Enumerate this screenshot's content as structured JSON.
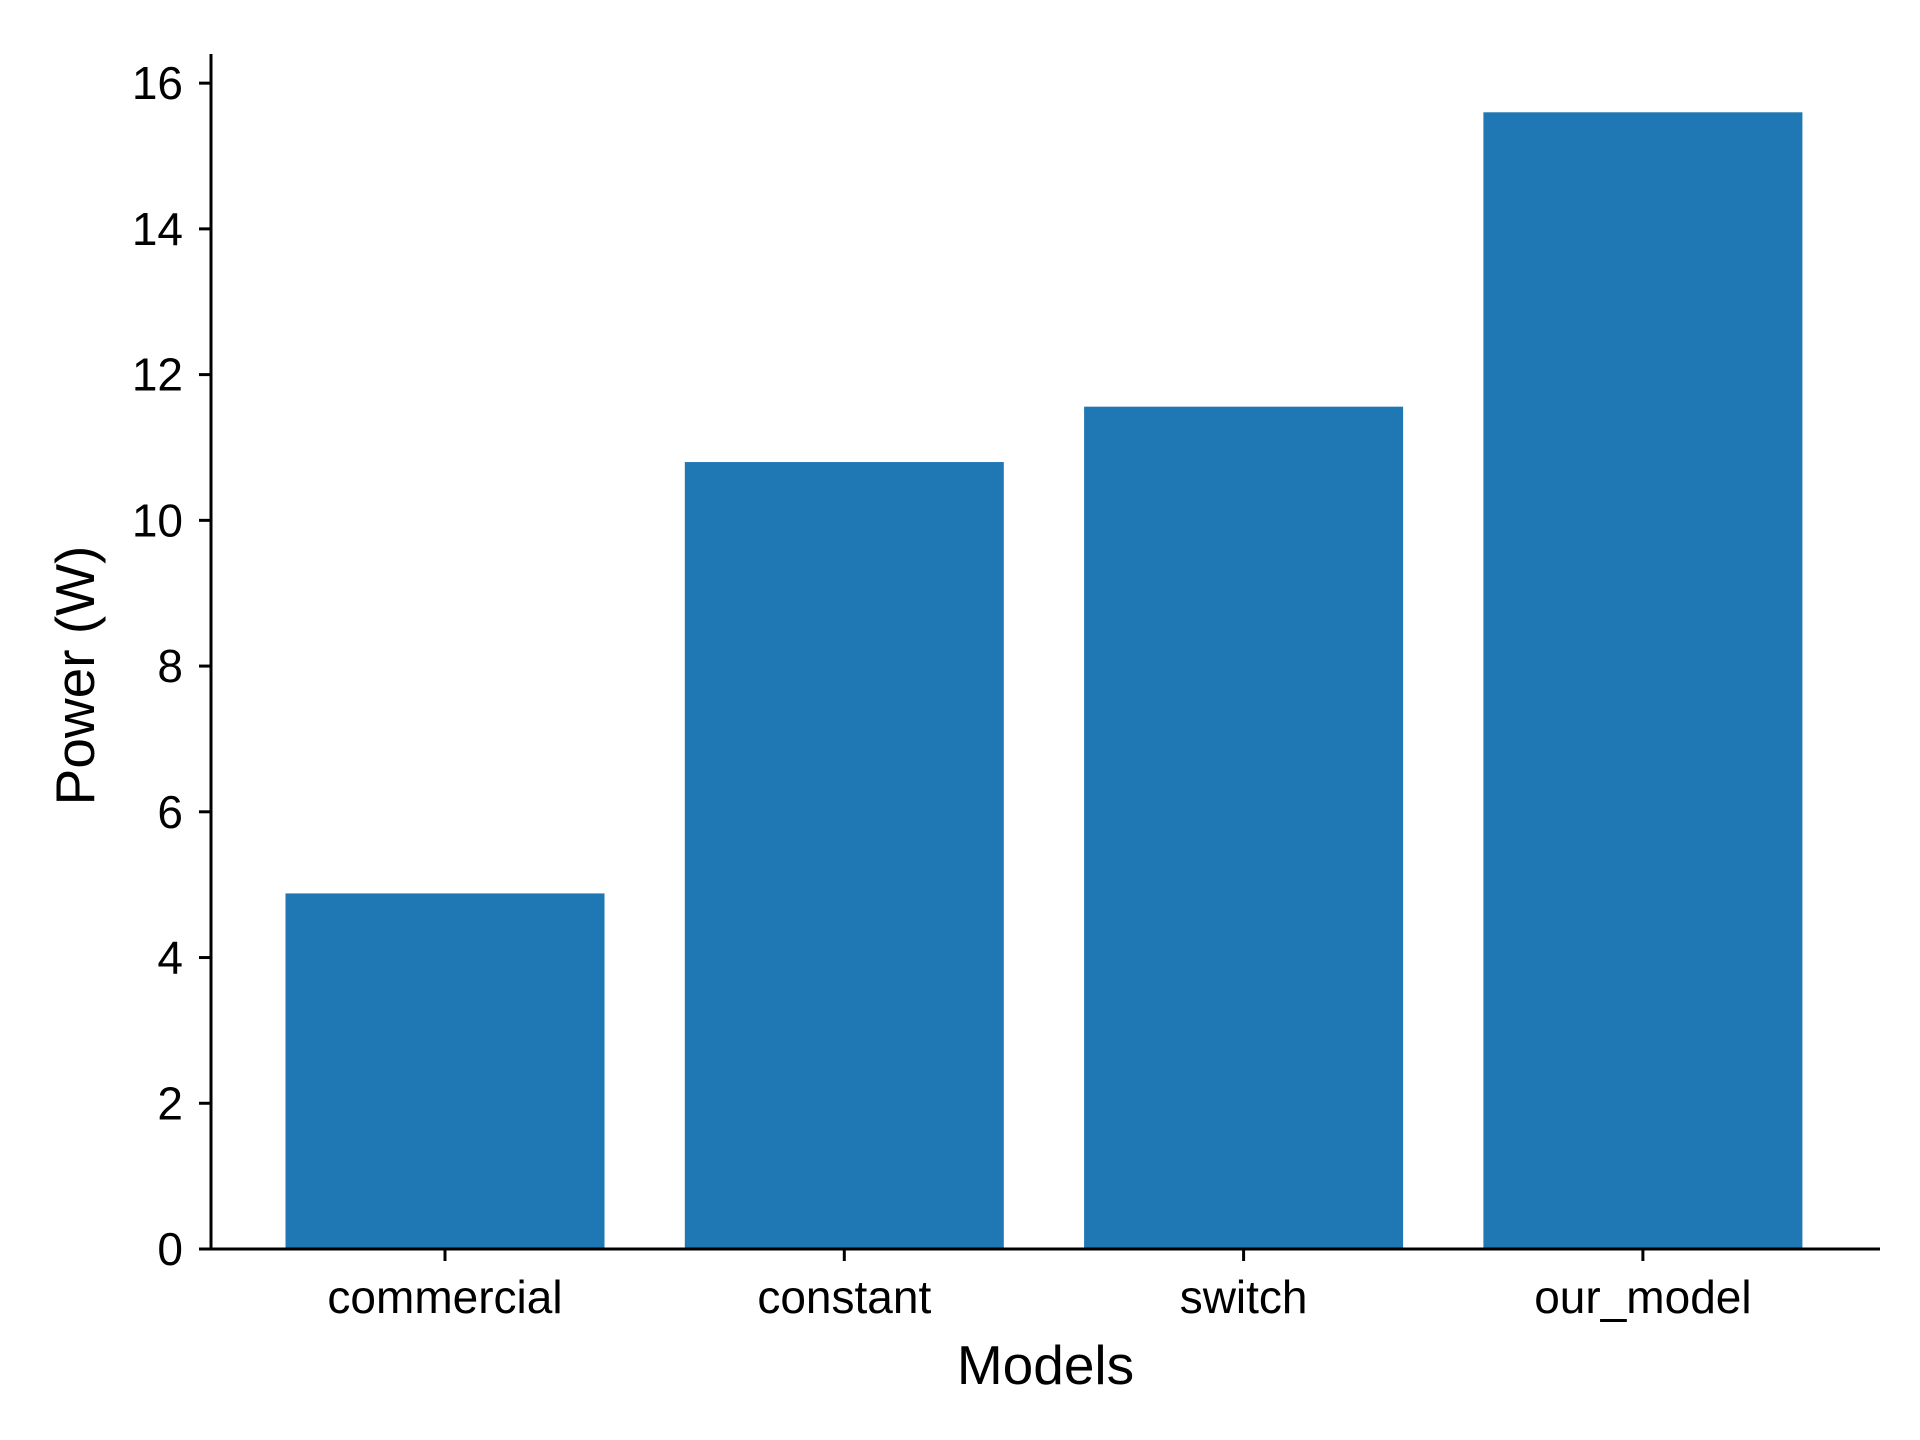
{
  "chart_data": {
    "type": "bar",
    "title": "",
    "categories": [
      "commercial",
      "constant",
      "switch",
      "our_model"
    ],
    "values": [
      4.88,
      10.8,
      11.56,
      15.6
    ],
    "xlabel": "Models",
    "ylabel": "Power (W)",
    "ylim": [
      0,
      16.4
    ],
    "yticks": [
      0,
      2,
      4,
      6,
      8,
      10,
      12,
      14,
      16
    ],
    "grid": false,
    "legend": "none",
    "bar_color": "#1f77b4"
  }
}
